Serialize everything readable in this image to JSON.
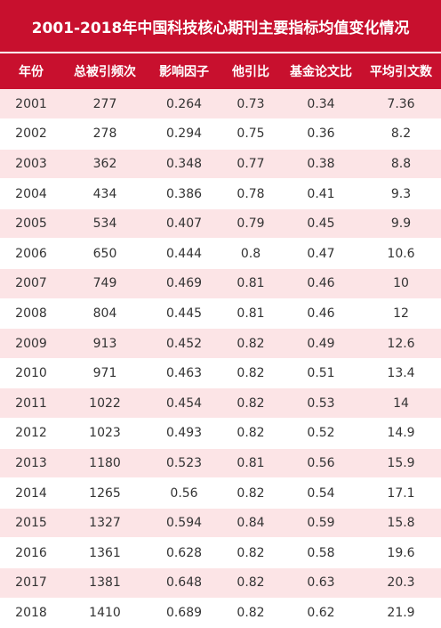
{
  "title": "2001-2018年中国科技核心期刊主要指标均值变化情况",
  "colors": {
    "header_bg": "#c8102e",
    "header_text": "#ffffff",
    "row_alt_bg": "#fce4e6",
    "row_bg": "#ffffff",
    "cell_text": "#333333"
  },
  "table": {
    "headers": [
      "年份",
      "总被引频次",
      "影响因子",
      "他引比",
      "基金论文比",
      "平均引文数"
    ],
    "rows": [
      [
        "2001",
        "277",
        "0.264",
        "0.73",
        "0.34",
        "7.36"
      ],
      [
        "2002",
        "278",
        "0.294",
        "0.75",
        "0.36",
        "8.2"
      ],
      [
        "2003",
        "362",
        "0.348",
        "0.77",
        "0.38",
        "8.8"
      ],
      [
        "2004",
        "434",
        "0.386",
        "0.78",
        "0.41",
        "9.3"
      ],
      [
        "2005",
        "534",
        "0.407",
        "0.79",
        "0.45",
        "9.9"
      ],
      [
        "2006",
        "650",
        "0.444",
        "0.8",
        "0.47",
        "10.6"
      ],
      [
        "2007",
        "749",
        "0.469",
        "0.81",
        "0.46",
        "10"
      ],
      [
        "2008",
        "804",
        "0.445",
        "0.81",
        "0.46",
        "12"
      ],
      [
        "2009",
        "913",
        "0.452",
        "0.82",
        "0.49",
        "12.6"
      ],
      [
        "2010",
        "971",
        "0.463",
        "0.82",
        "0.51",
        "13.4"
      ],
      [
        "2011",
        "1022",
        "0.454",
        "0.82",
        "0.53",
        "14"
      ],
      [
        "2012",
        "1023",
        "0.493",
        "0.82",
        "0.52",
        "14.9"
      ],
      [
        "2013",
        "1180",
        "0.523",
        "0.81",
        "0.56",
        "15.9"
      ],
      [
        "2014",
        "1265",
        "0.56",
        "0.82",
        "0.54",
        "17.1"
      ],
      [
        "2015",
        "1327",
        "0.594",
        "0.84",
        "0.59",
        "15.8"
      ],
      [
        "2016",
        "1361",
        "0.628",
        "0.82",
        "0.58",
        "19.6"
      ],
      [
        "2017",
        "1381",
        "0.648",
        "0.82",
        "0.63",
        "20.3"
      ],
      [
        "2018",
        "1410",
        "0.689",
        "0.82",
        "0.62",
        "21.9"
      ]
    ]
  }
}
